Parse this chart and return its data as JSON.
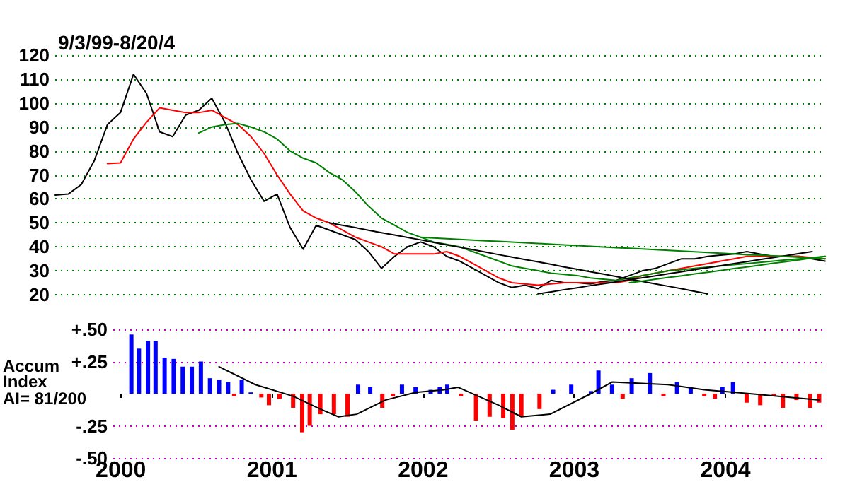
{
  "chart_data": [
    {
      "type": "line",
      "title": "9/3/99-8/20/4",
      "categories": [
        null,
        null,
        null,
        null,
        null,
        null,
        null,
        null,
        null,
        null,
        null,
        null,
        null,
        null,
        null,
        null,
        null,
        null,
        null,
        null,
        null,
        null,
        null,
        null,
        null,
        null,
        null,
        null,
        null,
        null,
        null,
        null,
        null,
        null,
        null,
        null,
        null,
        null,
        null,
        null,
        null,
        null,
        null,
        null,
        null,
        null,
        null,
        null,
        null,
        null,
        null,
        null,
        null,
        null,
        null,
        null,
        null,
        null,
        null,
        null
      ],
      "ylim": [
        20,
        120
      ],
      "yticks": [
        20,
        30,
        40,
        50,
        60,
        70,
        80,
        90,
        100,
        110,
        120
      ],
      "tick_labels": "y",
      "grid": "y",
      "marker": "none",
      "line_style": "solid",
      "series": [
        {
          "color": "#000000",
          "values": [
            61.6,
            62,
            66,
            76,
            91,
            96,
            112,
            104,
            88,
            86,
            95,
            97,
            102,
            92,
            79,
            68,
            59,
            62,
            48,
            39,
            49,
            47,
            45,
            43,
            38,
            31,
            36,
            40,
            42,
            40,
            36,
            34,
            31,
            28,
            25,
            23,
            24,
            22.5,
            26,
            25,
            25,
            24.5,
            25.5,
            26,
            28,
            30,
            31,
            33,
            35,
            35,
            36,
            36.5,
            37,
            38,
            37,
            36,
            36,
            36,
            35,
            34
          ]
        },
        {
          "color": "#ff0000",
          "values": [
            null,
            null,
            null,
            null,
            74.7,
            75,
            85,
            92,
            98,
            97,
            96,
            96,
            97,
            94,
            91,
            86,
            79,
            70,
            62,
            55,
            52,
            50,
            47,
            44,
            42,
            40,
            37,
            37,
            37,
            37,
            38,
            36,
            33,
            30,
            27,
            25,
            24.5,
            24,
            24.5,
            25,
            25,
            25,
            25,
            25,
            26,
            28,
            29,
            30,
            31,
            32,
            33,
            34,
            35,
            36,
            36,
            36,
            36,
            36,
            35.5,
            35
          ]
        },
        {
          "color": "#008000",
          "values": [
            null,
            null,
            null,
            null,
            null,
            null,
            null,
            null,
            null,
            null,
            null,
            87.5,
            90,
            91,
            91.5,
            90,
            88,
            85,
            80,
            77,
            75,
            71,
            68,
            63,
            57,
            52,
            49,
            46,
            44,
            42,
            41,
            40,
            38,
            36,
            34,
            32,
            31,
            30,
            29,
            28.5,
            28,
            27,
            26.5,
            26,
            27,
            28,
            29,
            30,
            30.5,
            31,
            31.5,
            32,
            32.5,
            33,
            33.5,
            34,
            34.5,
            35,
            35.5,
            36
          ]
        },
        {
          "color": "#000000",
          "values": [
            null,
            null,
            null,
            null,
            null,
            null,
            null,
            null,
            null,
            null,
            null,
            null,
            null,
            null,
            null,
            null,
            null,
            null,
            null,
            null,
            null,
            50,
            49,
            48,
            46.9,
            45.9,
            44.9,
            43.9,
            42.9,
            41.8,
            40.8,
            39.8,
            38.8,
            37.8,
            36.7,
            35.7,
            34.7,
            33.7,
            32.7,
            31.6,
            30.6,
            29.6,
            28.6,
            27.6,
            26.5,
            25.5,
            24.5,
            23.5,
            22.5,
            21.4,
            20.4,
            null,
            null,
            null,
            null,
            null,
            null,
            null,
            null,
            null
          ]
        },
        {
          "color": "#000000",
          "values": [
            null,
            null,
            null,
            null,
            null,
            null,
            null,
            null,
            null,
            null,
            null,
            null,
            null,
            null,
            null,
            null,
            null,
            null,
            null,
            null,
            null,
            null,
            null,
            null,
            null,
            null,
            null,
            null,
            null,
            null,
            null,
            null,
            null,
            null,
            null,
            null,
            null,
            20.4,
            21.2,
            22.1,
            22.9,
            23.8,
            24.6,
            25.4,
            26.3,
            27.1,
            27.9,
            28.8,
            29.6,
            30.5,
            31.3,
            32.1,
            33,
            33.8,
            34.7,
            35.5,
            36.3,
            37.2,
            38,
            null
          ]
        },
        {
          "color": "#008000",
          "values": [
            null,
            null,
            null,
            null,
            null,
            null,
            null,
            null,
            null,
            null,
            null,
            null,
            null,
            null,
            null,
            null,
            null,
            null,
            null,
            null,
            null,
            null,
            null,
            null,
            null,
            null,
            null,
            null,
            44,
            43.7,
            43.4,
            43.1,
            42.8,
            42.5,
            42.3,
            42,
            41.7,
            41.4,
            41.1,
            40.8,
            40.5,
            40.2,
            39.9,
            39.6,
            39.4,
            39.1,
            38.8,
            38.5,
            38.2,
            37.9,
            37.6,
            37.3,
            37,
            36.7,
            36.5,
            36.2,
            35.9,
            35.6,
            35.3,
            35
          ]
        },
        {
          "color": "#008000",
          "values": [
            null,
            null,
            null,
            null,
            null,
            null,
            null,
            null,
            null,
            null,
            null,
            null,
            null,
            null,
            null,
            null,
            null,
            null,
            null,
            null,
            null,
            null,
            null,
            null,
            null,
            null,
            null,
            null,
            null,
            null,
            null,
            null,
            null,
            null,
            null,
            null,
            null,
            null,
            null,
            null,
            null,
            null,
            null,
            null,
            25,
            25.7,
            26.5,
            27.2,
            27.9,
            28.7,
            29.4,
            30.1,
            30.9,
            31.6,
            32.3,
            33.1,
            33.8,
            34.5,
            35.3,
            36
          ]
        }
      ]
    },
    {
      "type": "bar",
      "ylabel": "Accum Index",
      "annotations": [
        "AI= 81/200"
      ],
      "xlim": [
        1999.95,
        2004.66
      ],
      "xticks": [
        2000,
        2001,
        2002,
        2003,
        2004
      ],
      "ylim": [
        -0.5,
        0.5
      ],
      "yticks": [
        {
          "value": 0.5,
          "label": "+.50"
        },
        {
          "value": 0.25,
          "label": "+.25"
        },
        {
          "value": -0.25,
          "label": "-.25"
        },
        {
          "value": -0.5,
          "label": "-.50"
        }
      ],
      "grid": "y",
      "series": [
        {
          "type": "bar",
          "x": [
            2000.07,
            2000.12,
            2000.18,
            2000.23,
            2000.29,
            2000.35,
            2000.41,
            2000.47,
            2000.53,
            2000.59,
            2000.65,
            2000.71,
            2000.75,
            2000.8,
            2000.86,
            2000.93,
            2000.98,
            2001.05,
            2001.14,
            2001.2,
            2001.25,
            2001.32,
            2001.41,
            2001.5,
            2001.57,
            2001.65,
            2001.73,
            2001.8,
            2001.86,
            2001.95,
            2002.05,
            2002.11,
            2002.16,
            2002.25,
            2002.35,
            2002.44,
            2002.53,
            2002.59,
            2002.65,
            2002.77,
            2002.86,
            2002.98,
            2003.11,
            2003.16,
            2003.25,
            2003.32,
            2003.38,
            2003.5,
            2003.59,
            2003.68,
            2003.77,
            2003.86,
            2003.93,
            2003.98,
            2004.05,
            2004.14,
            2004.23,
            2004.32,
            2004.38,
            2004.47,
            2004.56,
            2004.62
          ],
          "values": [
            0.46,
            0.35,
            0.41,
            0.41,
            0.28,
            0.27,
            0.21,
            0.21,
            0.25,
            0.12,
            0.11,
            0.09,
            -0.02,
            0.11,
            0.01,
            -0.03,
            -0.09,
            -0.04,
            -0.11,
            -0.3,
            -0.25,
            -0.16,
            -0.16,
            -0.18,
            0.07,
            0.05,
            -0.11,
            -0.02,
            0.07,
            0.05,
            0.03,
            0.05,
            0.07,
            -0.02,
            -0.21,
            -0.18,
            -0.19,
            -0.28,
            -0.18,
            -0.12,
            0.03,
            0.07,
            0.02,
            0.18,
            0.07,
            -0.04,
            0.12,
            0.16,
            -0.02,
            0.09,
            0.05,
            -0.02,
            -0.04,
            0.05,
            0.09,
            -0.07,
            -0.09,
            -0.02,
            -0.11,
            -0.05,
            -0.11,
            -0.07
          ],
          "colors": [
            "#0000ff",
            "#0000ff",
            "#0000ff",
            "#0000ff",
            "#0000ff",
            "#0000ff",
            "#0000ff",
            "#0000ff",
            "#0000ff",
            "#0000ff",
            "#0000ff",
            "#0000ff",
            "#ff0000",
            "#0000ff",
            "#0000ff",
            "#ff0000",
            "#ff0000",
            "#ff0000",
            "#ff0000",
            "#ff0000",
            "#ff0000",
            "#ff0000",
            "#ff0000",
            "#ff0000",
            "#0000ff",
            "#0000ff",
            "#ff0000",
            "#ff0000",
            "#0000ff",
            "#0000ff",
            "#0000ff",
            "#0000ff",
            "#0000ff",
            "#ff0000",
            "#ff0000",
            "#ff0000",
            "#ff0000",
            "#ff0000",
            "#ff0000",
            "#ff0000",
            "#0000ff",
            "#0000ff",
            "#0000ff",
            "#0000ff",
            "#0000ff",
            "#ff0000",
            "#0000ff",
            "#0000ff",
            "#ff0000",
            "#0000ff",
            "#0000ff",
            "#ff0000",
            "#ff0000",
            "#0000ff",
            "#0000ff",
            "#ff0000",
            "#ff0000",
            "#ff0000",
            "#ff0000",
            "#ff0000",
            "#ff0000",
            "#ff0000"
          ]
        },
        {
          "type": "line",
          "color": "#000000",
          "x": [
            2000.65,
            2000.89,
            2001.14,
            2001.32,
            2001.44,
            2001.56,
            2001.75,
            2001.95,
            2002.14,
            2002.23,
            2002.5,
            2002.65,
            2002.84,
            2003.11,
            2003.25,
            2003.62,
            2003.86,
            2004.16,
            2004.62
          ],
          "values": [
            0.21,
            0.07,
            -0.02,
            -0.12,
            -0.18,
            -0.16,
            -0.05,
            0.01,
            0.03,
            0.05,
            -0.09,
            -0.18,
            -0.16,
            0,
            0.09,
            0.07,
            0.03,
            0,
            -0.05
          ]
        }
      ]
    }
  ]
}
